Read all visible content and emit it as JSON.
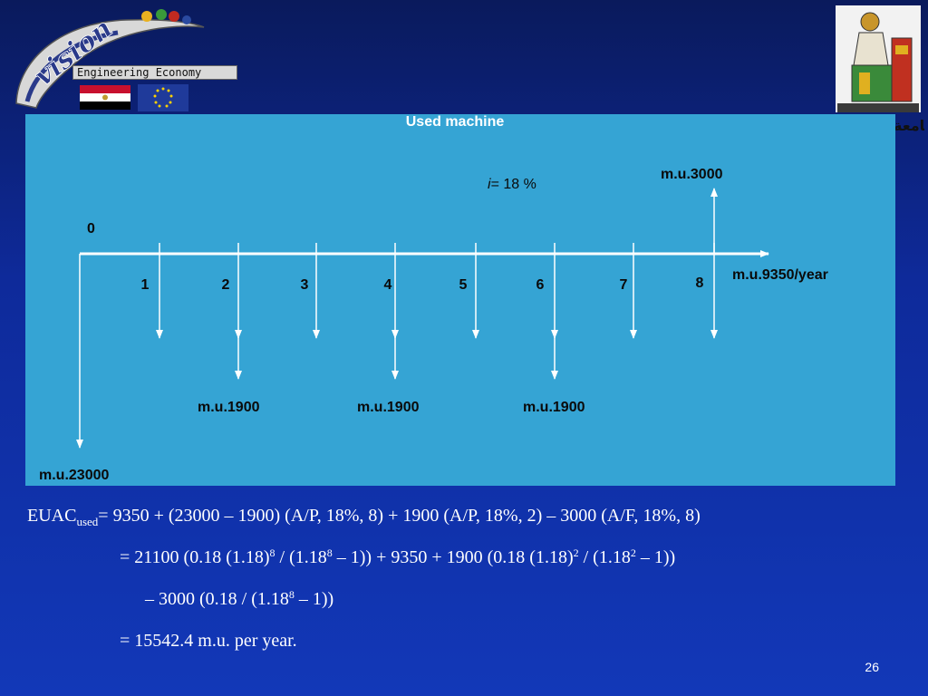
{
  "header": {
    "logo_word": "vision",
    "logo_subtitle": "Engineering Economy",
    "right_decor_text": "جامعة"
  },
  "diagram": {
    "title": "Used machine",
    "interest": {
      "symbol": "i",
      "text": "= 18 %"
    },
    "origin_label": "0",
    "year_labels": [
      "1",
      "2",
      "3",
      "4",
      "5",
      "6",
      "7",
      "8"
    ],
    "initial_cost": "m.u.23000",
    "annual_cost": "m.u.9350/year",
    "salvage": "m.u.3000",
    "overhaul_labels": [
      "m.u.1900",
      "m.u.1900",
      "m.u.1900"
    ]
  },
  "equations": {
    "lhs": "EUAC",
    "lhs_sub": "used",
    "line1_rhs": "= 9350 + (23000 – 1900) (A/P, 18%, 8) + 1900 (A/P, 18%, 2) – 3000 (A/F, 18%, 8)",
    "line2": {
      "a": "= 21100 (0.18 (1.18)",
      "a_sup": "8",
      "b": " / (1.18",
      "b_sup": "8",
      "c": " – 1)) + 9350 + 1900 (0.18 (1.18)",
      "c_sup": "2",
      "d": " / (1.18",
      "d_sup": "2",
      "e": " – 1))"
    },
    "line3": {
      "a": "– 3000 (0.18 / (1.18",
      "a_sup": "8",
      "b": " – 1))"
    },
    "line4": "= 15542.4 m.u. per year."
  },
  "slide_number": "26",
  "colors": {
    "background": "#0e2a9a",
    "panel": "#35a4d4",
    "diagram_ink": "#ffffff",
    "label_ink": "#0a0a0a"
  }
}
